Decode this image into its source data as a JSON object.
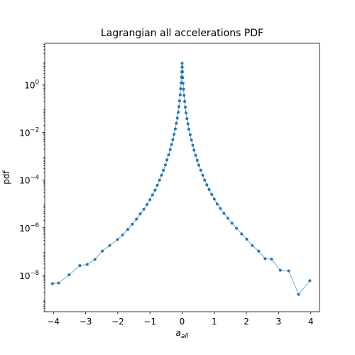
{
  "chart_data": {
    "type": "line",
    "title": "Lagrangian all accelerations PDF",
    "xlabel": "a_all",
    "xlabel_main": "a",
    "xlabel_sub": "all",
    "ylabel": "pdf",
    "yscale": "log",
    "xlim": [
      -4.27,
      4.27
    ],
    "ylim": [
      3e-10,
      55.0
    ],
    "grid": false,
    "legend": "none",
    "x_ticks": [
      -4,
      -3,
      -2,
      -1,
      0,
      1,
      2,
      3,
      4
    ],
    "x_tick_labels": [
      "−4",
      "−3",
      "−2",
      "−1",
      "0",
      "1",
      "2",
      "3",
      "4"
    ],
    "y_ticks": [
      1e-08,
      1e-06,
      0.0001,
      0.01,
      1
    ],
    "y_tick_labels": [
      {
        "base": "10",
        "exp": "−8"
      },
      {
        "base": "10",
        "exp": "−6"
      },
      {
        "base": "10",
        "exp": "−4"
      },
      {
        "base": "10",
        "exp": "−2"
      },
      {
        "base": "10",
        "exp": "0"
      }
    ],
    "series": [
      {
        "color": "#1f77b4",
        "points": [
          [
            -4.03,
            4.5e-09
          ],
          [
            -3.84,
            4.8e-09
          ],
          [
            -3.51,
            1.05e-08
          ],
          [
            -3.18,
            2.6e-08
          ],
          [
            -2.95,
            2.9e-08
          ],
          [
            -2.71,
            4.7e-08
          ],
          [
            -2.48,
            1.05e-07
          ],
          [
            -2.25,
            1.8e-07
          ],
          [
            -2.01,
            3.2e-07
          ],
          [
            -1.85,
            5e-07
          ],
          [
            -1.69,
            8.5e-07
          ],
          [
            -1.55,
            1.4e-06
          ],
          [
            -1.42,
            2.3e-06
          ],
          [
            -1.3,
            3.8e-06
          ],
          [
            -1.19,
            6e-06
          ],
          [
            -1.09,
            9.5e-06
          ],
          [
            -1.0,
            1.5e-05
          ],
          [
            -0.92,
            2.4e-05
          ],
          [
            -0.84,
            3.8e-05
          ],
          [
            -0.77,
            6.1e-05
          ],
          [
            -0.7,
            0.0001
          ],
          [
            -0.64,
            0.00016
          ],
          [
            -0.58,
            0.00026
          ],
          [
            -0.52,
            0.00043
          ],
          [
            -0.47,
            0.0007
          ],
          [
            -0.42,
            0.00115
          ],
          [
            -0.37,
            0.0019
          ],
          [
            -0.33,
            0.0031
          ],
          [
            -0.29,
            0.005
          ],
          [
            -0.25,
            0.0083
          ],
          [
            -0.21,
            0.014
          ],
          [
            -0.18,
            0.024
          ],
          [
            -0.15,
            0.04
          ],
          [
            -0.12,
            0.07
          ],
          [
            -0.1,
            0.12
          ],
          [
            -0.08,
            0.21
          ],
          [
            -0.06,
            0.38
          ],
          [
            -0.045,
            0.68
          ],
          [
            -0.03,
            1.2
          ],
          [
            -0.02,
            2.1
          ],
          [
            -0.01,
            3.5
          ],
          [
            -0.004,
            5.5
          ],
          [
            0.0,
            8.0
          ],
          [
            0.004,
            5.5
          ],
          [
            0.01,
            3.5
          ],
          [
            0.02,
            2.0
          ],
          [
            0.03,
            1.15
          ],
          [
            0.045,
            0.65
          ],
          [
            0.06,
            0.36
          ],
          [
            0.08,
            0.2
          ],
          [
            0.1,
            0.115
          ],
          [
            0.12,
            0.066
          ],
          [
            0.15,
            0.038
          ],
          [
            0.18,
            0.023
          ],
          [
            0.21,
            0.0135
          ],
          [
            0.25,
            0.008
          ],
          [
            0.29,
            0.0048
          ],
          [
            0.33,
            0.0029
          ],
          [
            0.37,
            0.0018
          ],
          [
            0.42,
            0.0011
          ],
          [
            0.47,
            0.00068
          ],
          [
            0.52,
            0.00042
          ],
          [
            0.58,
            0.00026
          ],
          [
            0.64,
            0.00016
          ],
          [
            0.7,
            0.0001
          ],
          [
            0.77,
            6.3e-05
          ],
          [
            0.84,
            4e-05
          ],
          [
            0.92,
            2.5e-05
          ],
          [
            1.0,
            1.6e-05
          ],
          [
            1.09,
            1e-05
          ],
          [
            1.19,
            6.4e-06
          ],
          [
            1.3,
            4e-06
          ],
          [
            1.42,
            2.5e-06
          ],
          [
            1.55,
            1.55e-06
          ],
          [
            1.69,
            9.5e-07
          ],
          [
            1.85,
            5.5e-07
          ],
          [
            2.01,
            3.3e-07
          ],
          [
            2.18,
            1.8e-07
          ],
          [
            2.38,
            1.05e-07
          ],
          [
            2.58,
            5e-08
          ],
          [
            2.78,
            4.8e-08
          ],
          [
            3.05,
            1.65e-08
          ],
          [
            3.31,
            1.55e-08
          ],
          [
            3.62,
            1.6e-09
          ],
          [
            3.97,
            6e-09
          ]
        ]
      }
    ]
  }
}
